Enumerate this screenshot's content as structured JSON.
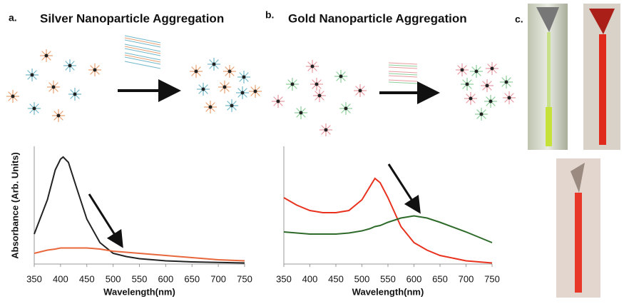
{
  "panels": [
    {
      "label": "a.",
      "title": "Silver Nanoparticle Aggregation",
      "chart_data": {
        "type": "line",
        "x_label": "Wavelength(nm)",
        "y_label": "Absorbance (Arb. Units)",
        "x": [
          350,
          375,
          390,
          400,
          405,
          415,
          430,
          450,
          475,
          500,
          525,
          550,
          600,
          650,
          700,
          750
        ],
        "xlim": [
          350,
          750
        ],
        "xticks": [
          350,
          400,
          450,
          500,
          550,
          600,
          650,
          700,
          750
        ],
        "ylim": [
          0,
          1.1
        ],
        "series": [
          {
            "color": "#222222",
            "values": [
              0.28,
              0.6,
              0.88,
              0.98,
              1.0,
              0.95,
              0.72,
              0.42,
              0.2,
              0.1,
              0.07,
              0.05,
              0.03,
              0.02,
              0.015,
              0.01
            ]
          },
          {
            "color": "#e8673c",
            "values": [
              0.1,
              0.13,
              0.14,
              0.15,
              0.15,
              0.15,
              0.15,
              0.15,
              0.14,
              0.12,
              0.11,
              0.1,
              0.08,
              0.06,
              0.04,
              0.03
            ]
          }
        ]
      }
    },
    {
      "label": "b.",
      "title": "Gold Nanoparticle Aggregation",
      "chart_data": {
        "type": "line",
        "x_label": "Wavelength(nm)",
        "x": [
          350,
          375,
          400,
          425,
          450,
          475,
          500,
          515,
          525,
          535,
          550,
          575,
          600,
          625,
          650,
          700,
          750
        ],
        "xlim": [
          350,
          750
        ],
        "xticks": [
          350,
          400,
          450,
          500,
          550,
          600,
          650,
          700,
          750
        ],
        "ylim": [
          0,
          1.1
        ],
        "series": [
          {
            "color": "#e8321e",
            "values": [
              0.62,
              0.55,
              0.5,
              0.48,
              0.48,
              0.5,
              0.6,
              0.72,
              0.8,
              0.76,
              0.62,
              0.35,
              0.2,
              0.13,
              0.08,
              0.03,
              0.01
            ]
          },
          {
            "color": "#2e6b2a",
            "values": [
              0.3,
              0.29,
              0.28,
              0.28,
              0.28,
              0.29,
              0.31,
              0.33,
              0.35,
              0.36,
              0.39,
              0.43,
              0.45,
              0.43,
              0.39,
              0.3,
              0.2
            ]
          }
        ]
      }
    },
    {
      "label": "c."
    }
  ]
}
